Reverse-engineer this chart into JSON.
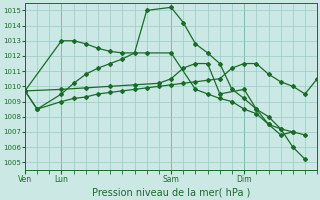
{
  "bg_color": "#cce8e4",
  "grid_color": "#99ccc8",
  "line_color": "#1a6b2a",
  "marker_color": "#1a6b2a",
  "xlabel": "Pression niveau de la mer( hPa )",
  "xlabel_fontsize": 7.0,
  "ylim": [
    1004.5,
    1015.5
  ],
  "yticks": [
    1005,
    1006,
    1007,
    1008,
    1009,
    1010,
    1011,
    1012,
    1013,
    1014,
    1015
  ],
  "xtick_labels": [
    "Ven",
    "Lun",
    "Sam",
    "Dim"
  ],
  "xtick_positions": [
    0,
    24,
    96,
    144
  ],
  "xlim": [
    0,
    192
  ],
  "series1_x": [
    0,
    8,
    24,
    32,
    40,
    48,
    56,
    64,
    72,
    80,
    88,
    96,
    104,
    112,
    120,
    128,
    136,
    144,
    152,
    160,
    168,
    176,
    184,
    192
  ],
  "series1_y": [
    1009.7,
    1008.5,
    1009.0,
    1009.2,
    1009.3,
    1009.5,
    1009.6,
    1009.7,
    1009.8,
    1009.9,
    1010.0,
    1010.1,
    1010.2,
    1010.3,
    1010.4,
    1010.5,
    1011.2,
    1011.5,
    1011.5,
    1010.8,
    1010.3,
    1010.0,
    1009.5,
    1010.5
  ],
  "series2_x": [
    0,
    8,
    24,
    32,
    40,
    48,
    56,
    64,
    72,
    80,
    96,
    104,
    112,
    120,
    128,
    136,
    144,
    152,
    160,
    168,
    176,
    184
  ],
  "series2_y": [
    1009.7,
    1008.5,
    1009.5,
    1010.2,
    1010.8,
    1011.2,
    1011.5,
    1011.8,
    1012.2,
    1015.0,
    1015.2,
    1014.2,
    1012.8,
    1012.2,
    1011.5,
    1009.8,
    1009.2,
    1008.5,
    1008.0,
    1007.2,
    1006.0,
    1005.2
  ],
  "series3_x": [
    0,
    24,
    32,
    40,
    48,
    56,
    64,
    80,
    96,
    112,
    120,
    128,
    136,
    144,
    152,
    160,
    168,
    176
  ],
  "series3_y": [
    1009.7,
    1013.0,
    1013.0,
    1012.8,
    1012.5,
    1012.3,
    1012.2,
    1012.2,
    1012.2,
    1009.8,
    1009.5,
    1009.2,
    1009.0,
    1008.5,
    1008.2,
    1007.5,
    1006.8,
    1007.0
  ],
  "series4_x": [
    0,
    24,
    40,
    56,
    72,
    88,
    96,
    104,
    112,
    120,
    128,
    144,
    152,
    160,
    168,
    176,
    184
  ],
  "series4_y": [
    1009.7,
    1009.8,
    1009.9,
    1010.0,
    1010.1,
    1010.2,
    1010.5,
    1011.2,
    1011.5,
    1011.5,
    1009.5,
    1009.8,
    1008.5,
    1007.5,
    1007.2,
    1007.0,
    1006.8
  ]
}
